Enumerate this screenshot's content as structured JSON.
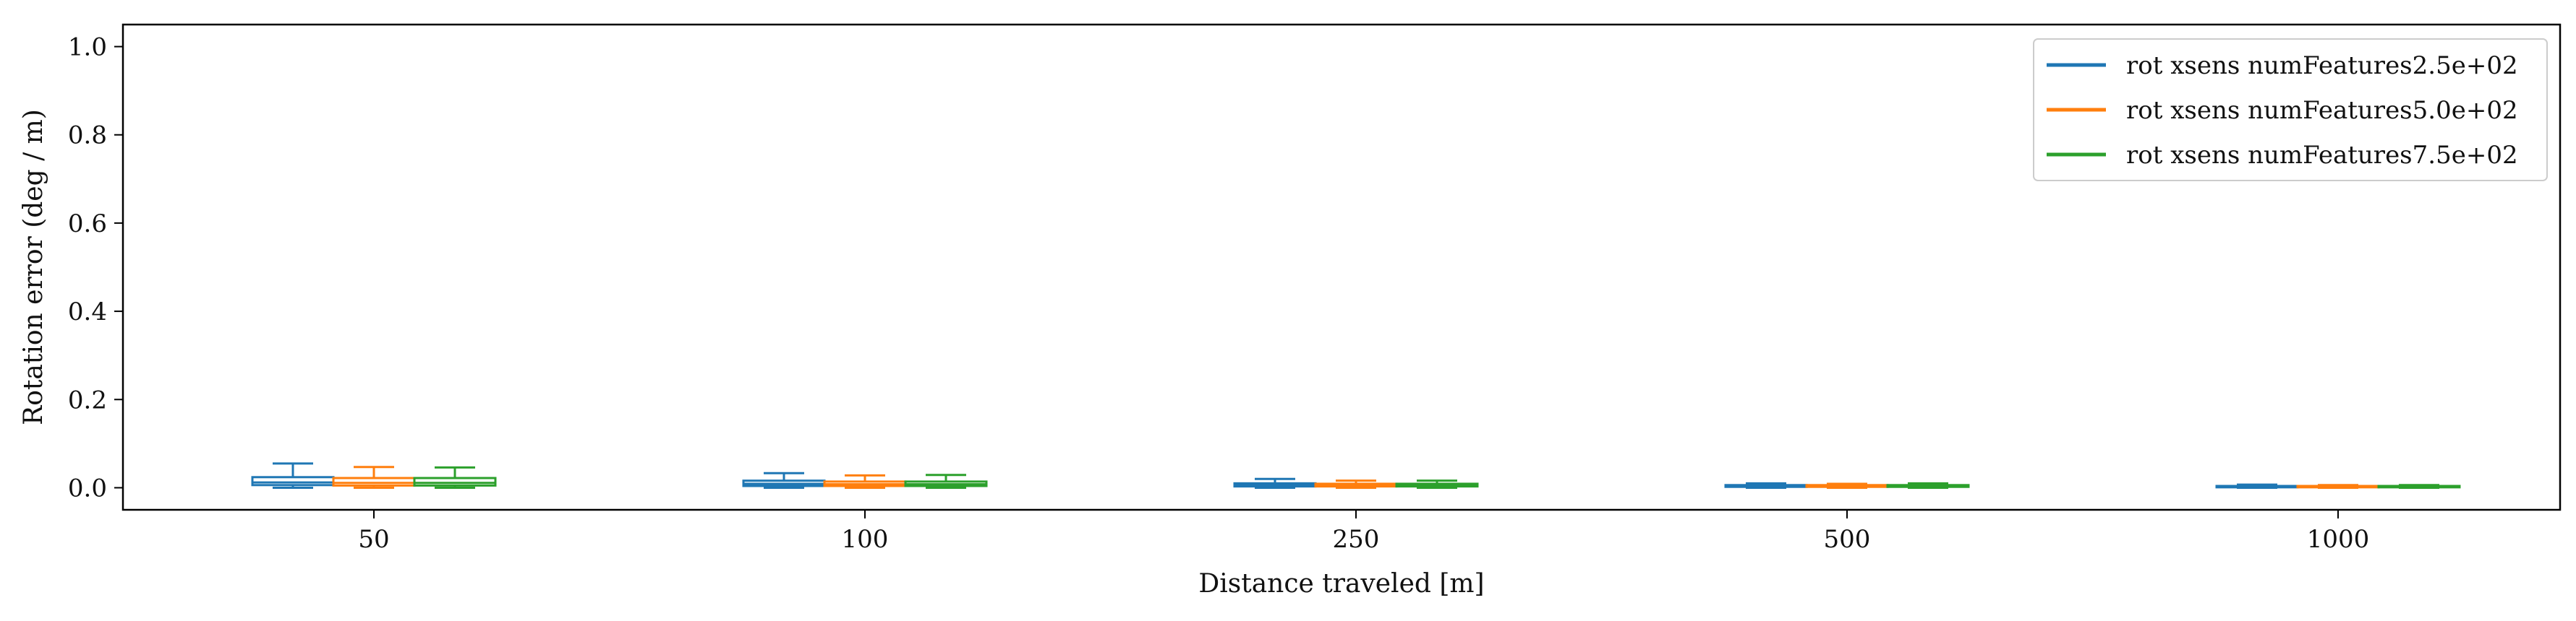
{
  "chart_data": {
    "type": "boxplot",
    "xlabel": "Distance traveled [m]",
    "ylabel": "Rotation error (deg / m)",
    "ylim": [
      -0.05,
      1.05
    ],
    "yticks": [
      0.0,
      0.2,
      0.4,
      0.6,
      0.8,
      1.0
    ],
    "ytick_labels": [
      "0.0",
      "0.2",
      "0.4",
      "0.6",
      "0.8",
      "1.0"
    ],
    "categories": [
      "50",
      "100",
      "250",
      "500",
      "1000"
    ],
    "grid": false,
    "legend_position": "top-right",
    "series": [
      {
        "name": "rot xsens numFeatures2.5e+02",
        "color": "#1f77b4",
        "boxes": [
          {
            "whislo": 0.0,
            "q1": 0.006,
            "med": 0.012,
            "q3": 0.024,
            "whishi": 0.055
          },
          {
            "whislo": 0.0,
            "q1": 0.004,
            "med": 0.009,
            "q3": 0.016,
            "whishi": 0.033
          },
          {
            "whislo": 0.0,
            "q1": 0.003,
            "med": 0.006,
            "q3": 0.01,
            "whishi": 0.02
          },
          {
            "whislo": 0.0,
            "q1": 0.002,
            "med": 0.004,
            "q3": 0.006,
            "whishi": 0.01
          },
          {
            "whislo": 0.0,
            "q1": 0.001,
            "med": 0.003,
            "q3": 0.004,
            "whishi": 0.007
          }
        ]
      },
      {
        "name": "rot xsens numFeatures5.0e+02",
        "color": "#ff7f0e",
        "boxes": [
          {
            "whislo": 0.0,
            "q1": 0.005,
            "med": 0.011,
            "q3": 0.022,
            "whishi": 0.047
          },
          {
            "whislo": 0.0,
            "q1": 0.004,
            "med": 0.008,
            "q3": 0.014,
            "whishi": 0.028
          },
          {
            "whislo": 0.0,
            "q1": 0.003,
            "med": 0.006,
            "q3": 0.009,
            "whishi": 0.016
          },
          {
            "whislo": 0.0,
            "q1": 0.002,
            "med": 0.004,
            "q3": 0.006,
            "whishi": 0.009
          },
          {
            "whislo": 0.0,
            "q1": 0.001,
            "med": 0.003,
            "q3": 0.004,
            "whishi": 0.006
          }
        ]
      },
      {
        "name": "rot xsens numFeatures7.5e+02",
        "color": "#2ca02c",
        "boxes": [
          {
            "whislo": 0.0,
            "q1": 0.005,
            "med": 0.011,
            "q3": 0.022,
            "whishi": 0.046
          },
          {
            "whislo": 0.0,
            "q1": 0.004,
            "med": 0.008,
            "q3": 0.014,
            "whishi": 0.029
          },
          {
            "whislo": 0.0,
            "q1": 0.003,
            "med": 0.006,
            "q3": 0.009,
            "whishi": 0.016
          },
          {
            "whislo": 0.0,
            "q1": 0.002,
            "med": 0.004,
            "q3": 0.006,
            "whishi": 0.01
          },
          {
            "whislo": 0.0,
            "q1": 0.001,
            "med": 0.003,
            "q3": 0.004,
            "whishi": 0.006
          }
        ]
      }
    ]
  }
}
